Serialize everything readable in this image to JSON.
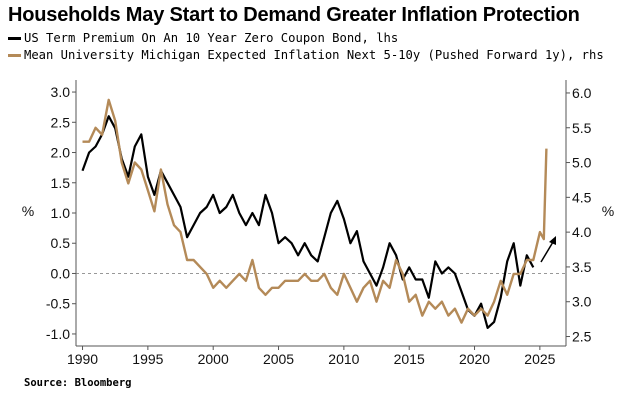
{
  "chart_data": {
    "type": "line",
    "title": "Households May Start to Demand Greater Inflation Protection",
    "source": "Source: Bloomberg",
    "x_ticks": [
      "1990",
      "1995",
      "2000",
      "2005",
      "2010",
      "2015",
      "2020",
      "2025"
    ],
    "xlim": [
      1989.5,
      2027
    ],
    "left_axis": {
      "label": "%",
      "ylim": [
        -1.1,
        3.1
      ],
      "ticks": [
        "3.0",
        "2.5",
        "2.0",
        "1.5",
        "1.0",
        "0.5",
        "0.0",
        "-0.5",
        "-1.0"
      ]
    },
    "right_axis": {
      "label": "%",
      "ylim": [
        2.45,
        6.1
      ],
      "ticks": [
        "6.0",
        "5.5",
        "5.0",
        "4.5",
        "4.0",
        "3.5",
        "3.0",
        "2.5"
      ]
    },
    "zero_line": 0,
    "series": [
      {
        "name": "US Term Premium On An 10 Year Zero Coupon Bond, lhs",
        "axis": "left",
        "color": "#000000",
        "x": [
          1990.0,
          1990.5,
          1991.0,
          1991.5,
          1992.0,
          1992.5,
          1993.0,
          1993.5,
          1994.0,
          1994.5,
          1995.0,
          1995.5,
          1996.0,
          1996.5,
          1997.0,
          1997.5,
          1998.0,
          1998.5,
          1999.0,
          1999.5,
          2000.0,
          2000.5,
          2001.0,
          2001.5,
          2002.0,
          2002.5,
          2003.0,
          2003.5,
          2004.0,
          2004.5,
          2005.0,
          2005.5,
          2006.0,
          2006.5,
          2007.0,
          2007.5,
          2008.0,
          2008.5,
          2009.0,
          2009.5,
          2010.0,
          2010.5,
          2011.0,
          2011.5,
          2012.0,
          2012.5,
          2013.0,
          2013.5,
          2014.0,
          2014.5,
          2015.0,
          2015.5,
          2016.0,
          2016.5,
          2017.0,
          2017.5,
          2018.0,
          2018.5,
          2019.0,
          2019.5,
          2020.0,
          2020.5,
          2021.0,
          2021.5,
          2022.0,
          2022.5,
          2023.0,
          2023.5,
          2024.0,
          2024.5
        ],
        "values": [
          1.7,
          2.0,
          2.1,
          2.3,
          2.6,
          2.4,
          1.9,
          1.6,
          2.1,
          2.3,
          1.6,
          1.3,
          1.7,
          1.5,
          1.3,
          1.1,
          0.6,
          0.8,
          1.0,
          1.1,
          1.3,
          1.0,
          1.1,
          1.3,
          1.0,
          0.8,
          1.0,
          0.8,
          1.3,
          1.0,
          0.5,
          0.6,
          0.5,
          0.3,
          0.5,
          0.3,
          0.2,
          0.6,
          1.0,
          1.2,
          0.9,
          0.5,
          0.7,
          0.2,
          0.0,
          -0.2,
          0.1,
          0.5,
          0.3,
          -0.1,
          0.1,
          -0.1,
          -0.1,
          -0.4,
          0.2,
          0.0,
          0.1,
          0.0,
          -0.3,
          -0.6,
          -0.7,
          -0.5,
          -0.9,
          -0.8,
          -0.4,
          0.2,
          0.5,
          -0.2,
          0.3,
          0.1
        ]
      },
      {
        "name": "Mean University Michigan Expected Inflation Next 5-10y (Pushed Forward 1y), rhs",
        "axis": "right",
        "color": "#b48a58",
        "x": [
          1990.0,
          1990.5,
          1991.0,
          1991.5,
          1992.0,
          1992.5,
          1993.0,
          1993.5,
          1994.0,
          1994.5,
          1995.0,
          1995.5,
          1996.0,
          1996.5,
          1997.0,
          1997.5,
          1998.0,
          1998.5,
          1999.0,
          1999.5,
          2000.0,
          2000.5,
          2001.0,
          2001.5,
          2002.0,
          2002.5,
          2003.0,
          2003.5,
          2004.0,
          2004.5,
          2005.0,
          2005.5,
          2006.0,
          2006.5,
          2007.0,
          2007.5,
          2008.0,
          2008.5,
          2009.0,
          2009.5,
          2010.0,
          2010.5,
          2011.0,
          2011.5,
          2012.0,
          2012.5,
          2013.0,
          2013.5,
          2014.0,
          2014.5,
          2015.0,
          2015.5,
          2016.0,
          2016.5,
          2017.0,
          2017.5,
          2018.0,
          2018.5,
          2019.0,
          2019.5,
          2020.0,
          2020.5,
          2021.0,
          2021.5,
          2022.0,
          2022.5,
          2023.0,
          2023.5,
          2024.0,
          2024.5,
          2025.0,
          2025.3,
          2025.5
        ],
        "values": [
          5.3,
          5.3,
          5.5,
          5.4,
          5.9,
          5.6,
          5.0,
          4.7,
          5.0,
          4.9,
          4.6,
          4.3,
          4.9,
          4.4,
          4.1,
          4.0,
          3.6,
          3.6,
          3.5,
          3.4,
          3.2,
          3.3,
          3.2,
          3.3,
          3.4,
          3.3,
          3.6,
          3.2,
          3.1,
          3.2,
          3.2,
          3.3,
          3.3,
          3.3,
          3.4,
          3.3,
          3.3,
          3.4,
          3.2,
          3.1,
          3.4,
          3.2,
          3.0,
          3.2,
          3.3,
          3.0,
          3.3,
          3.2,
          3.6,
          3.4,
          3.0,
          3.1,
          2.8,
          3.0,
          2.9,
          3.0,
          2.8,
          2.9,
          2.7,
          2.9,
          2.8,
          2.9,
          2.8,
          3.0,
          3.3,
          3.1,
          3.4,
          3.4,
          3.6,
          3.6,
          4.0,
          3.9,
          5.2
        ]
      }
    ],
    "annotation": {
      "type": "arrow",
      "color": "#000000"
    }
  }
}
